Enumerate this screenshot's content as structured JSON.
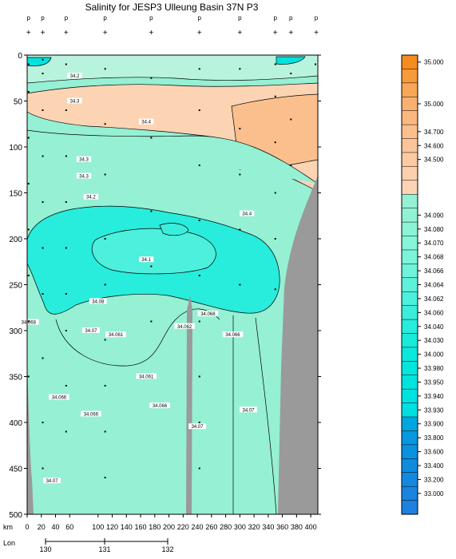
{
  "title": "Salinity for JESP3 Ulleung Basin 37N P3",
  "chart_data": {
    "type": "heatmap",
    "title": "Salinity for JESP3 Ulleung Basin 37N P3",
    "x_axis": {
      "label": "km",
      "range": [
        0,
        410
      ],
      "ticks": [
        0,
        20,
        40,
        60,
        100,
        120,
        140,
        160,
        180,
        200,
        220,
        240,
        260,
        280,
        300,
        320,
        340,
        360,
        380,
        400
      ]
    },
    "y_axis": {
      "label": "",
      "range": [
        0,
        500
      ],
      "inverted": true,
      "ticks": [
        0,
        50,
        100,
        150,
        200,
        250,
        300,
        350,
        400,
        450,
        500
      ]
    },
    "lon_axis": {
      "label": "Lon",
      "ticks": [
        130,
        131,
        132
      ]
    },
    "station_labels": [
      "p",
      "p",
      "p",
      "p",
      "p",
      "p",
      "p",
      "p",
      "p",
      "p"
    ],
    "station_km": [
      2,
      22,
      55,
      110,
      175,
      243,
      300,
      350,
      372,
      410
    ],
    "colorbar": [
      {
        "label": "35.000",
        "color": "#f68c1e"
      },
      {
        "label": "",
        "color": "#f79a3c"
      },
      {
        "label": "",
        "color": "#f8a658"
      },
      {
        "label": "35.000",
        "color": "#f9b070"
      },
      {
        "label": "",
        "color": "#fab880"
      },
      {
        "label": "34.700",
        "color": "#fbbf8e"
      },
      {
        "label": "34.600",
        "color": "#fbc599"
      },
      {
        "label": "34.500",
        "color": "#fccba4"
      },
      {
        "label": "",
        "color": "#fcd0ac"
      },
      {
        "label": "",
        "color": "#fcd4b4"
      },
      {
        "label": "",
        "color": "#96f0d3"
      },
      {
        "label": "34.090",
        "color": "#90f2d3"
      },
      {
        "label": "34.080",
        "color": "#8cf4d6"
      },
      {
        "label": "34.070",
        "color": "#86f5d8"
      },
      {
        "label": "34.068",
        "color": "#7cf4d8"
      },
      {
        "label": "34.066",
        "color": "#6ff3da"
      },
      {
        "label": "34.064",
        "color": "#5ef2db"
      },
      {
        "label": "34.062",
        "color": "#4cf0dc"
      },
      {
        "label": "34.060",
        "color": "#3aeedc"
      },
      {
        "label": "34.040",
        "color": "#28ecdc"
      },
      {
        "label": "34.030",
        "color": "#18eadc"
      },
      {
        "label": "34.000",
        "color": "#0ce8dd"
      },
      {
        "label": "33.980",
        "color": "#02e6dd"
      },
      {
        "label": "33.950",
        "color": "#00e4de"
      },
      {
        "label": "33.940",
        "color": "#00e2df"
      },
      {
        "label": "33.930",
        "color": "#00e0e0"
      },
      {
        "label": "33.900",
        "color": "#00a6e0"
      },
      {
        "label": "33.800",
        "color": "#0698e0"
      },
      {
        "label": "33.600",
        "color": "#0a92e0"
      },
      {
        "label": "33.400",
        "color": "#0e8ce0"
      },
      {
        "label": "33.200",
        "color": "#1488e0"
      },
      {
        "label": "33.000",
        "color": "#1a84e0"
      },
      {
        "label": "",
        "color": "#1e80e0"
      }
    ],
    "contour_labels": [
      {
        "text": "34.2",
        "x": 67,
        "y": 5
      },
      {
        "text": "34.3",
        "x": 67,
        "y": 11
      },
      {
        "text": "34.4",
        "x": 168,
        "y": 16
      },
      {
        "text": "34.3",
        "x": 80,
        "y": 25
      },
      {
        "text": "34.3",
        "x": 80,
        "y": 29
      },
      {
        "text": "34.2",
        "x": 90,
        "y": 34
      },
      {
        "text": "34.4",
        "x": 310,
        "y": 38
      },
      {
        "text": "34.1",
        "x": 168,
        "y": 49
      },
      {
        "text": "34.08",
        "x": 100,
        "y": 59
      },
      {
        "text": "34.068",
        "x": 2,
        "y": 64
      },
      {
        "text": "34.07",
        "x": 90,
        "y": 66
      },
      {
        "text": "34.061",
        "x": 125,
        "y": 67
      },
      {
        "text": "34.062",
        "x": 222,
        "y": 65
      },
      {
        "text": "34.068",
        "x": 255,
        "y": 62
      },
      {
        "text": "34.066",
        "x": 290,
        "y": 67
      },
      {
        "text": "34.061",
        "x": 168,
        "y": 77
      },
      {
        "text": "34.066",
        "x": 45,
        "y": 82
      },
      {
        "text": "34.066",
        "x": 187,
        "y": 84
      },
      {
        "text": "34.066",
        "x": 90,
        "y": 86
      },
      {
        "text": "34.07",
        "x": 312,
        "y": 85
      },
      {
        "text": "34.07",
        "x": 240,
        "y": 89
      },
      {
        "text": "34.07",
        "x": 35,
        "y": 102
      }
    ]
  }
}
